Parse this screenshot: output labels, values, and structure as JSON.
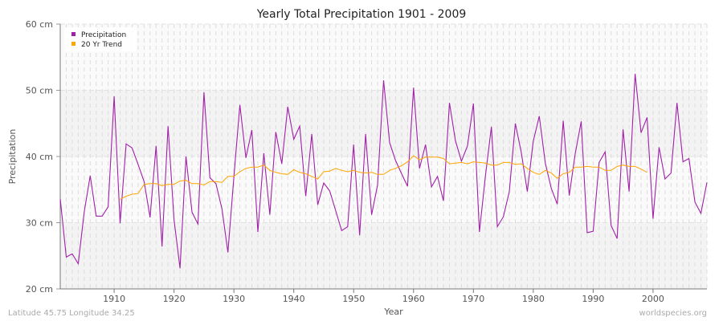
{
  "chart_data": {
    "type": "line",
    "title": "Yearly Total Precipitation 1901 - 2009",
    "xlabel": "Year",
    "ylabel": "Precipitation",
    "xlim": [
      1901,
      2009
    ],
    "ylim": [
      20,
      60
    ],
    "x_ticks": [
      1910,
      1920,
      1930,
      1940,
      1950,
      1960,
      1970,
      1980,
      1990,
      2000
    ],
    "y_ticks": [
      {
        "v": 20,
        "label": "20 cm"
      },
      {
        "v": 30,
        "label": "30 cm"
      },
      {
        "v": 40,
        "label": "40 cm"
      },
      {
        "v": 50,
        "label": "50 cm"
      },
      {
        "v": 60,
        "label": "60 cm"
      }
    ],
    "grid": true,
    "legend_placement": "top-left",
    "series": [
      {
        "name": "Precipitation",
        "color": "#a020a8",
        "x_start": 1901,
        "values": [
          33.6,
          24.8,
          25.3,
          23.8,
          31.6,
          37.1,
          31.0,
          31.0,
          32.4,
          49.1,
          29.9,
          41.9,
          41.3,
          38.8,
          36.2,
          30.8,
          41.6,
          26.4,
          44.6,
          30.5,
          23.1,
          40.0,
          31.6,
          29.8,
          49.7,
          36.8,
          35.9,
          32.1,
          25.5,
          37.0,
          47.8,
          39.8,
          44.0,
          28.6,
          40.5,
          31.2,
          43.7,
          38.9,
          47.5,
          42.6,
          44.6,
          34.0,
          43.4,
          32.7,
          36.0,
          34.8,
          31.8,
          28.8,
          29.4,
          41.8,
          28.1,
          43.4,
          31.2,
          35.7,
          51.5,
          42.1,
          39.4,
          37.4,
          35.5,
          50.4,
          38.2,
          41.8,
          35.4,
          37.0,
          33.3,
          48.1,
          42.4,
          39.3,
          41.6,
          48.0,
          28.6,
          37.0,
          44.5,
          29.4,
          30.9,
          34.7,
          45.0,
          40.6,
          34.7,
          42.3,
          46.1,
          39.0,
          35.2,
          32.8,
          45.4,
          34.1,
          40.4,
          45.3,
          28.5,
          28.7,
          39.1,
          40.7,
          29.6,
          27.6,
          44.1,
          34.7,
          52.5,
          43.6,
          45.9,
          30.6,
          41.4,
          36.6,
          37.5,
          48.1,
          39.2,
          39.7,
          33.1,
          31.4,
          36.1
        ]
      },
      {
        "name": "20 Yr Trend",
        "color": "#ffa500",
        "x_start": 1911,
        "values": [
          33.5,
          34.0,
          34.3,
          34.4,
          35.8,
          35.9,
          35.9,
          35.6,
          35.8,
          35.8,
          36.3,
          36.4,
          35.9,
          35.9,
          35.7,
          36.2,
          36.2,
          36.1,
          37.0,
          37.0,
          37.7,
          38.2,
          38.4,
          38.4,
          38.7,
          37.9,
          37.6,
          37.4,
          37.3,
          38.0,
          37.6,
          37.4,
          37.0,
          36.6,
          37.7,
          37.8,
          38.2,
          37.9,
          37.7,
          37.9,
          37.6,
          37.5,
          37.6,
          37.3,
          37.3,
          37.9,
          38.2,
          38.6,
          39.2,
          40.1,
          39.5,
          39.9,
          39.9,
          39.9,
          39.7,
          38.9,
          39.0,
          39.1,
          38.9,
          39.2,
          39.1,
          39.0,
          38.7,
          38.7,
          39.1,
          39.1,
          38.8,
          38.9,
          38.2,
          37.6,
          37.3,
          37.9,
          37.5,
          36.7,
          37.4,
          37.6,
          38.4,
          38.4,
          38.5,
          38.4,
          38.4,
          37.9,
          37.9,
          38.5,
          38.7,
          38.5,
          38.5,
          38.1,
          37.6
        ]
      }
    ]
  },
  "footer": {
    "left": "Latitude 45.75 Longitude 34.25",
    "right": "worldspecies.org"
  }
}
